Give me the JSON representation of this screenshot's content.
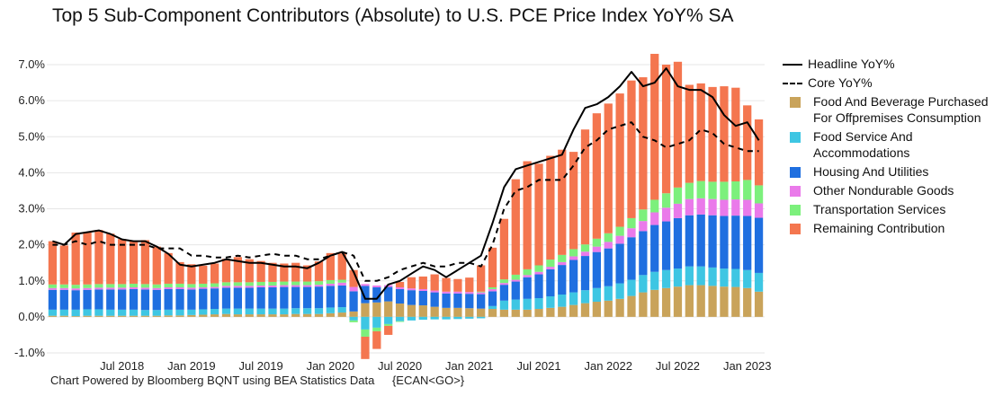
{
  "title": "Top 5 Sub-Component Contributors (Absolute) to U.S. PCE Price Index YoY% SA",
  "footer": {
    "source": "Chart Powered by Bloomberg BQNT using BEA Statistics Data",
    "code": "{ECAN<GO>}"
  },
  "chart_data": {
    "type": "bar",
    "stacked": true,
    "title": "Top 5 Sub-Component Contributors (Absolute) to U.S. PCE Price Index YoY% SA",
    "ylim": [
      -1.0,
      7.0
    ],
    "y_ticks": [
      "7.0%",
      "6.0%",
      "5.0%",
      "4.0%",
      "3.0%",
      "2.0%",
      "1.0%",
      "0.0%",
      "-1.0%"
    ],
    "x_ticks": [
      "Jul 2018",
      "Jan 2019",
      "Jul 2019",
      "Jan 2020",
      "Jul 2020",
      "Jan 2021",
      "Jul 2021",
      "Jan 2022",
      "Jul 2022",
      "Jan 2023"
    ],
    "legend_position": "right",
    "categories": [
      "2018-01",
      "2018-02",
      "2018-03",
      "2018-04",
      "2018-05",
      "2018-06",
      "2018-07",
      "2018-08",
      "2018-09",
      "2018-10",
      "2018-11",
      "2018-12",
      "2019-01",
      "2019-02",
      "2019-03",
      "2019-04",
      "2019-05",
      "2019-06",
      "2019-07",
      "2019-08",
      "2019-09",
      "2019-10",
      "2019-11",
      "2019-12",
      "2020-01",
      "2020-02",
      "2020-03",
      "2020-04",
      "2020-05",
      "2020-06",
      "2020-07",
      "2020-08",
      "2020-09",
      "2020-10",
      "2020-11",
      "2020-12",
      "2021-01",
      "2021-02",
      "2021-03",
      "2021-04",
      "2021-05",
      "2021-06",
      "2021-07",
      "2021-08",
      "2021-09",
      "2021-10",
      "2021-11",
      "2021-12",
      "2022-01",
      "2022-02",
      "2022-03",
      "2022-04",
      "2022-05",
      "2022-06",
      "2022-07",
      "2022-08",
      "2022-09",
      "2022-10",
      "2022-11",
      "2022-12",
      "2023-01",
      "2023-02"
    ],
    "series": [
      {
        "name": "Food And Beverage Purchased For Offpremises Consumption",
        "color": "#c9a35a",
        "values": [
          0.03,
          0.03,
          0.02,
          0.03,
          0.03,
          0.03,
          0.03,
          0.03,
          0.03,
          0.03,
          0.04,
          0.04,
          0.05,
          0.06,
          0.07,
          0.08,
          0.07,
          0.07,
          0.07,
          0.07,
          0.07,
          0.08,
          0.08,
          0.08,
          0.1,
          0.12,
          0.15,
          0.38,
          0.4,
          0.43,
          0.37,
          0.33,
          0.32,
          0.28,
          0.25,
          0.25,
          0.24,
          0.23,
          0.22,
          0.2,
          0.2,
          0.2,
          0.22,
          0.25,
          0.28,
          0.33,
          0.38,
          0.42,
          0.45,
          0.5,
          0.58,
          0.68,
          0.75,
          0.8,
          0.84,
          0.88,
          0.88,
          0.86,
          0.84,
          0.83,
          0.8,
          0.7
        ]
      },
      {
        "name": "Food Service And Accommodations",
        "color": "#3ec6e3",
        "values": [
          0.17,
          0.17,
          0.18,
          0.18,
          0.18,
          0.17,
          0.17,
          0.17,
          0.16,
          0.16,
          0.16,
          0.16,
          0.15,
          0.15,
          0.15,
          0.15,
          0.16,
          0.16,
          0.16,
          0.16,
          0.16,
          0.16,
          0.16,
          0.16,
          0.16,
          0.15,
          -0.1,
          -0.35,
          -0.3,
          -0.2,
          -0.12,
          -0.1,
          -0.08,
          -0.07,
          -0.07,
          -0.06,
          -0.05,
          -0.04,
          0.08,
          0.25,
          0.28,
          0.3,
          0.3,
          0.32,
          0.34,
          0.35,
          0.36,
          0.38,
          0.4,
          0.43,
          0.45,
          0.48,
          0.5,
          0.5,
          0.5,
          0.52,
          0.52,
          0.51,
          0.5,
          0.5,
          0.5,
          0.52
        ]
      },
      {
        "name": "Housing And Utilities",
        "color": "#1f6fe0",
        "values": [
          0.55,
          0.55,
          0.54,
          0.54,
          0.55,
          0.56,
          0.56,
          0.57,
          0.57,
          0.56,
          0.57,
          0.57,
          0.56,
          0.57,
          0.57,
          0.58,
          0.58,
          0.58,
          0.59,
          0.59,
          0.6,
          0.59,
          0.59,
          0.6,
          0.6,
          0.6,
          0.56,
          0.48,
          0.42,
          0.4,
          0.4,
          0.41,
          0.4,
          0.4,
          0.4,
          0.4,
          0.4,
          0.4,
          0.41,
          0.44,
          0.5,
          0.6,
          0.66,
          0.75,
          0.82,
          0.9,
          0.95,
          1.0,
          1.05,
          1.1,
          1.18,
          1.22,
          1.3,
          1.35,
          1.4,
          1.42,
          1.44,
          1.45,
          1.46,
          1.48,
          1.5,
          1.53
        ]
      },
      {
        "name": "Other Nondurable Goods",
        "color": "#ea7aea",
        "values": [
          0.05,
          0.05,
          0.05,
          0.05,
          0.05,
          0.05,
          0.05,
          0.05,
          0.05,
          0.05,
          0.05,
          0.05,
          0.05,
          0.04,
          0.04,
          0.05,
          0.05,
          0.05,
          0.05,
          0.05,
          0.05,
          0.05,
          0.05,
          0.05,
          0.06,
          0.08,
          0.12,
          0.05,
          0.05,
          0.05,
          0.05,
          0.05,
          0.05,
          0.05,
          0.05,
          0.05,
          0.05,
          0.05,
          0.06,
          0.05,
          0.05,
          0.06,
          0.07,
          0.07,
          0.08,
          0.1,
          0.12,
          0.15,
          0.18,
          0.22,
          0.25,
          0.28,
          0.35,
          0.38,
          0.4,
          0.45,
          0.45,
          0.45,
          0.45,
          0.45,
          0.45,
          0.4
        ]
      },
      {
        "name": "Transportation Services",
        "color": "#7cf07c",
        "values": [
          0.1,
          0.1,
          0.1,
          0.1,
          0.1,
          0.1,
          0.1,
          0.1,
          0.1,
          0.1,
          0.1,
          0.1,
          0.1,
          0.1,
          0.1,
          0.1,
          0.1,
          0.1,
          0.1,
          0.1,
          0.1,
          0.1,
          0.1,
          0.1,
          0.1,
          0.08,
          -0.05,
          -0.2,
          -0.1,
          -0.05,
          -0.02,
          0.0,
          0.0,
          0.0,
          0.0,
          0.0,
          0.0,
          0.02,
          0.05,
          0.1,
          0.14,
          0.16,
          0.18,
          0.2,
          0.2,
          0.2,
          0.2,
          0.22,
          0.24,
          0.25,
          0.28,
          0.32,
          0.35,
          0.4,
          0.45,
          0.45,
          0.48,
          0.48,
          0.5,
          0.5,
          0.55,
          0.5
        ]
      },
      {
        "name": "Remaining Contribution",
        "color": "#f4764f",
        "values": [
          1.2,
          1.08,
          1.45,
          1.45,
          1.5,
          1.4,
          1.25,
          1.18,
          1.22,
          1.05,
          0.85,
          0.6,
          0.55,
          0.5,
          0.55,
          0.65,
          0.7,
          0.64,
          0.58,
          0.53,
          0.5,
          0.52,
          0.45,
          0.55,
          0.75,
          0.73,
          0.47,
          -0.62,
          -0.49,
          -0.25,
          0.15,
          0.31,
          0.35,
          0.45,
          0.38,
          0.35,
          0.4,
          0.73,
          1.1,
          1.68,
          2.65,
          3.0,
          2.82,
          2.88,
          2.92,
          2.7,
          3.19,
          3.48,
          3.6,
          3.7,
          3.82,
          3.67,
          4.05,
          3.57,
          3.49,
          2.72,
          2.71,
          2.63,
          2.65,
          2.6,
          2.07,
          1.83
        ]
      },
      {
        "name": "Headline YoY%",
        "kind": "line",
        "color": "#000000",
        "values": [
          2.1,
          2.0,
          2.3,
          2.35,
          2.4,
          2.3,
          2.15,
          2.1,
          2.1,
          1.95,
          1.75,
          1.45,
          1.4,
          1.45,
          1.5,
          1.6,
          1.55,
          1.5,
          1.5,
          1.45,
          1.4,
          1.4,
          1.35,
          1.5,
          1.7,
          1.8,
          1.25,
          0.5,
          0.5,
          0.9,
          1.0,
          1.2,
          1.4,
          1.3,
          1.1,
          1.3,
          1.5,
          1.7,
          2.6,
          3.6,
          4.1,
          4.2,
          4.3,
          4.4,
          4.5,
          5.2,
          5.8,
          5.9,
          6.1,
          6.4,
          6.8,
          6.4,
          6.5,
          6.9,
          6.4,
          6.3,
          6.3,
          6.1,
          5.6,
          5.3,
          5.4,
          4.9
        ]
      },
      {
        "name": "Core YoY%",
        "kind": "line",
        "dashed": true,
        "color": "#000000",
        "values": [
          2.0,
          2.0,
          2.1,
          2.0,
          2.1,
          2.0,
          2.0,
          2.0,
          2.0,
          1.9,
          1.9,
          1.9,
          1.7,
          1.7,
          1.65,
          1.65,
          1.7,
          1.65,
          1.7,
          1.75,
          1.7,
          1.7,
          1.6,
          1.6,
          1.7,
          1.8,
          1.7,
          1.0,
          1.0,
          1.1,
          1.3,
          1.4,
          1.5,
          1.4,
          1.4,
          1.5,
          1.5,
          1.4,
          2.0,
          3.0,
          3.5,
          3.6,
          3.8,
          3.8,
          3.8,
          4.2,
          4.7,
          4.9,
          5.2,
          5.3,
          5.4,
          5.0,
          4.9,
          4.7,
          4.8,
          4.9,
          5.2,
          5.1,
          4.8,
          4.7,
          4.6,
          4.6
        ]
      }
    ]
  }
}
